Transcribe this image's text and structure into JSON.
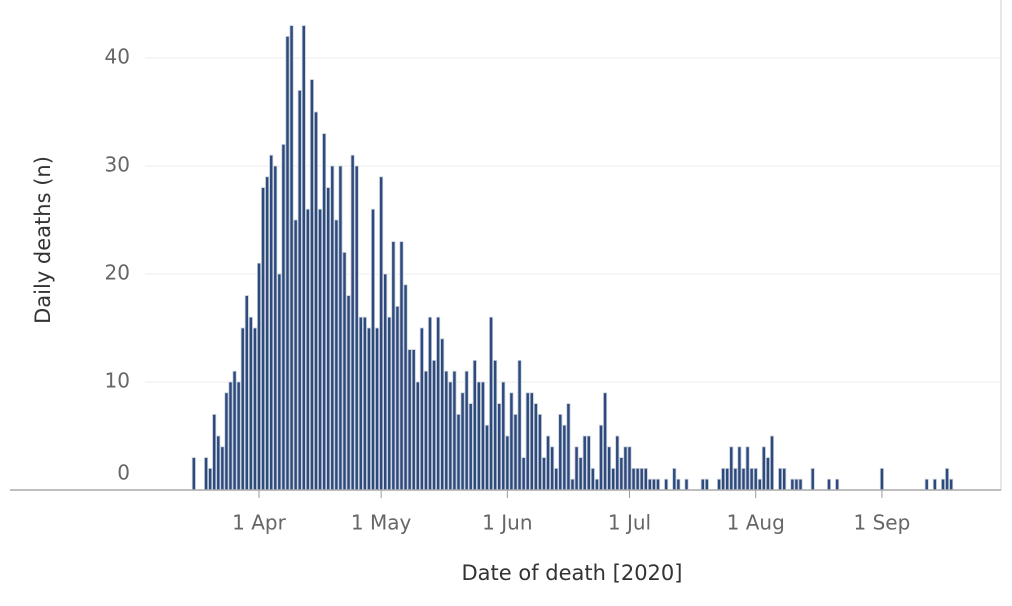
{
  "chart_data": {
    "type": "bar",
    "x_label": "Date of death [2020]",
    "y_label": "Daily deaths (n)",
    "color": "#2e4a7d",
    "xlim": [
      "2020-03-04",
      "2020-09-30"
    ],
    "xticks": [
      {
        "value": "2020-04-01",
        "label": "1 Apr"
      },
      {
        "value": "2020-05-01",
        "label": "1 May"
      },
      {
        "value": "2020-06-01",
        "label": "1 Jun"
      },
      {
        "value": "2020-07-01",
        "label": "1 Jul"
      },
      {
        "value": "2020-08-01",
        "label": "1 Aug"
      },
      {
        "value": "2020-09-01",
        "label": "1 Sep"
      }
    ],
    "ylim": [
      0,
      45
    ],
    "yticks": [
      0,
      10,
      20,
      30,
      40
    ],
    "grid": true,
    "x": [
      "2020-03-16",
      "2020-03-17",
      "2020-03-18",
      "2020-03-19",
      "2020-03-20",
      "2020-03-21",
      "2020-03-22",
      "2020-03-23",
      "2020-03-24",
      "2020-03-25",
      "2020-03-26",
      "2020-03-27",
      "2020-03-28",
      "2020-03-29",
      "2020-03-30",
      "2020-03-31",
      "2020-04-01",
      "2020-04-02",
      "2020-04-03",
      "2020-04-04",
      "2020-04-05",
      "2020-04-06",
      "2020-04-07",
      "2020-04-08",
      "2020-04-09",
      "2020-04-10",
      "2020-04-11",
      "2020-04-12",
      "2020-04-13",
      "2020-04-14",
      "2020-04-15",
      "2020-04-16",
      "2020-04-17",
      "2020-04-18",
      "2020-04-19",
      "2020-04-20",
      "2020-04-21",
      "2020-04-22",
      "2020-04-23",
      "2020-04-24",
      "2020-04-25",
      "2020-04-26",
      "2020-04-27",
      "2020-04-28",
      "2020-04-29",
      "2020-04-30",
      "2020-05-01",
      "2020-05-02",
      "2020-05-03",
      "2020-05-04",
      "2020-05-05",
      "2020-05-06",
      "2020-05-07",
      "2020-05-08",
      "2020-05-09",
      "2020-05-10",
      "2020-05-11",
      "2020-05-12",
      "2020-05-13",
      "2020-05-14",
      "2020-05-15",
      "2020-05-16",
      "2020-05-17",
      "2020-05-18",
      "2020-05-19",
      "2020-05-20",
      "2020-05-21",
      "2020-05-22",
      "2020-05-23",
      "2020-05-24",
      "2020-05-25",
      "2020-05-26",
      "2020-05-27",
      "2020-05-28",
      "2020-05-29",
      "2020-05-30",
      "2020-05-31",
      "2020-06-01",
      "2020-06-02",
      "2020-06-03",
      "2020-06-04",
      "2020-06-05",
      "2020-06-06",
      "2020-06-07",
      "2020-06-08",
      "2020-06-09",
      "2020-06-10",
      "2020-06-11",
      "2020-06-12",
      "2020-06-13",
      "2020-06-14",
      "2020-06-15",
      "2020-06-16",
      "2020-06-17",
      "2020-06-18",
      "2020-06-19",
      "2020-06-20",
      "2020-06-21",
      "2020-06-22",
      "2020-06-23",
      "2020-06-24",
      "2020-06-25",
      "2020-06-26",
      "2020-06-27",
      "2020-06-28",
      "2020-06-29",
      "2020-06-30",
      "2020-07-01",
      "2020-07-02",
      "2020-07-03",
      "2020-07-04",
      "2020-07-05",
      "2020-07-06",
      "2020-07-07",
      "2020-07-08",
      "2020-07-09",
      "2020-07-10",
      "2020-07-11",
      "2020-07-12",
      "2020-07-13",
      "2020-07-14",
      "2020-07-15",
      "2020-07-16",
      "2020-07-17",
      "2020-07-18",
      "2020-07-19",
      "2020-07-20",
      "2020-07-21",
      "2020-07-22",
      "2020-07-23",
      "2020-07-24",
      "2020-07-25",
      "2020-07-26",
      "2020-07-27",
      "2020-07-28",
      "2020-07-29",
      "2020-07-30",
      "2020-07-31",
      "2020-08-01",
      "2020-08-02",
      "2020-08-03",
      "2020-08-04",
      "2020-08-05",
      "2020-08-06",
      "2020-08-07",
      "2020-08-08",
      "2020-08-09",
      "2020-08-10",
      "2020-08-11",
      "2020-08-12",
      "2020-08-13",
      "2020-08-14",
      "2020-08-15",
      "2020-08-16",
      "2020-08-17",
      "2020-08-18",
      "2020-08-19",
      "2020-08-20",
      "2020-08-21",
      "2020-08-22",
      "2020-08-23",
      "2020-08-24",
      "2020-08-25",
      "2020-08-26",
      "2020-08-27",
      "2020-08-28",
      "2020-08-29",
      "2020-08-30",
      "2020-08-31",
      "2020-09-01",
      "2020-09-02",
      "2020-09-03",
      "2020-09-04",
      "2020-09-05",
      "2020-09-06",
      "2020-09-07",
      "2020-09-08",
      "2020-09-09",
      "2020-09-10",
      "2020-09-11",
      "2020-09-12",
      "2020-09-13",
      "2020-09-14",
      "2020-09-15",
      "2020-09-16",
      "2020-09-17",
      "2020-09-18"
    ],
    "values": [
      3,
      0,
      0,
      3,
      2,
      7,
      5,
      4,
      9,
      10,
      11,
      10,
      15,
      18,
      16,
      15,
      21,
      28,
      29,
      31,
      30,
      20,
      32,
      42,
      43,
      25,
      37,
      43,
      26,
      38,
      35,
      26,
      33,
      28,
      30,
      25,
      30,
      22,
      18,
      31,
      30,
      16,
      16,
      15,
      26,
      15,
      29,
      20,
      16,
      23,
      17,
      23,
      19,
      13,
      13,
      10,
      15,
      11,
      16,
      12,
      16,
      14,
      11,
      10,
      11,
      7,
      9,
      11,
      8,
      12,
      10,
      10,
      6,
      16,
      12,
      8,
      10,
      5,
      9,
      7,
      12,
      3,
      9,
      9,
      8,
      7,
      3,
      5,
      4,
      2,
      7,
      6,
      8,
      1,
      4,
      3,
      5,
      5,
      2,
      1,
      6,
      9,
      4,
      2,
      5,
      3,
      4,
      4,
      2,
      2,
      2,
      2,
      1,
      1,
      1,
      0,
      1,
      0,
      2,
      1,
      0,
      1,
      0,
      0,
      0,
      1,
      1,
      0,
      0,
      1,
      2,
      2,
      4,
      2,
      4,
      2,
      4,
      2,
      2,
      1,
      4,
      3,
      5,
      0,
      2,
      2,
      0,
      1,
      1,
      1,
      0,
      0,
      2,
      0,
      0,
      0,
      1,
      0,
      1,
      0,
      0,
      0,
      0,
      0,
      0,
      0,
      0,
      0,
      0,
      2,
      0,
      0,
      0,
      0,
      0,
      0,
      0,
      0,
      0,
      0,
      1,
      0,
      1,
      0,
      1,
      2,
      1
    ]
  }
}
